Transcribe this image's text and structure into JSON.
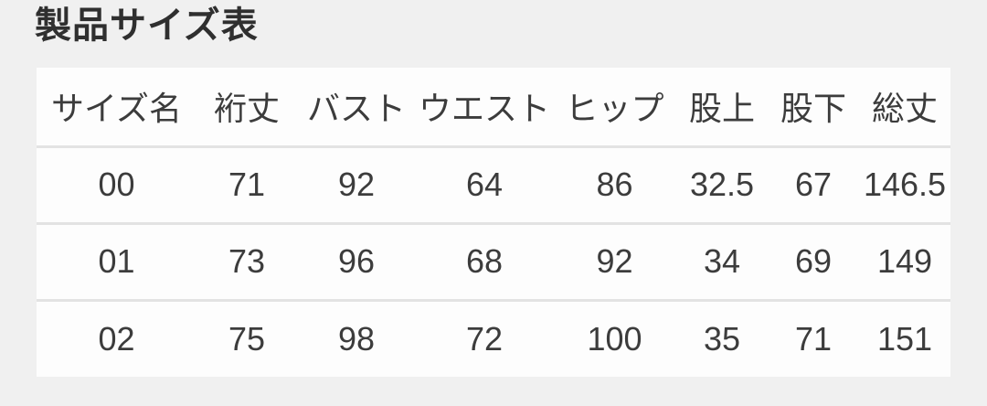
{
  "page": {
    "title": "製品サイズ表"
  },
  "size_table": {
    "headers": [
      "サイズ名",
      "裄丈",
      "バスト",
      "ウエスト",
      "ヒップ",
      "股上",
      "股下",
      "総丈"
    ],
    "rows": [
      [
        "00",
        "71",
        "92",
        "64",
        "86",
        "32.5",
        "67",
        "146.5"
      ],
      [
        "01",
        "73",
        "96",
        "68",
        "92",
        "34",
        "69",
        "149"
      ],
      [
        "02",
        "75",
        "98",
        "72",
        "100",
        "35",
        "71",
        "151"
      ]
    ]
  },
  "colors": {
    "page_background": "#f0f0f0",
    "table_background": "#fdfdfd",
    "row_separator": "#e3e3e3",
    "text": "#3c3c3c",
    "title_text": "#2f2f2f"
  }
}
